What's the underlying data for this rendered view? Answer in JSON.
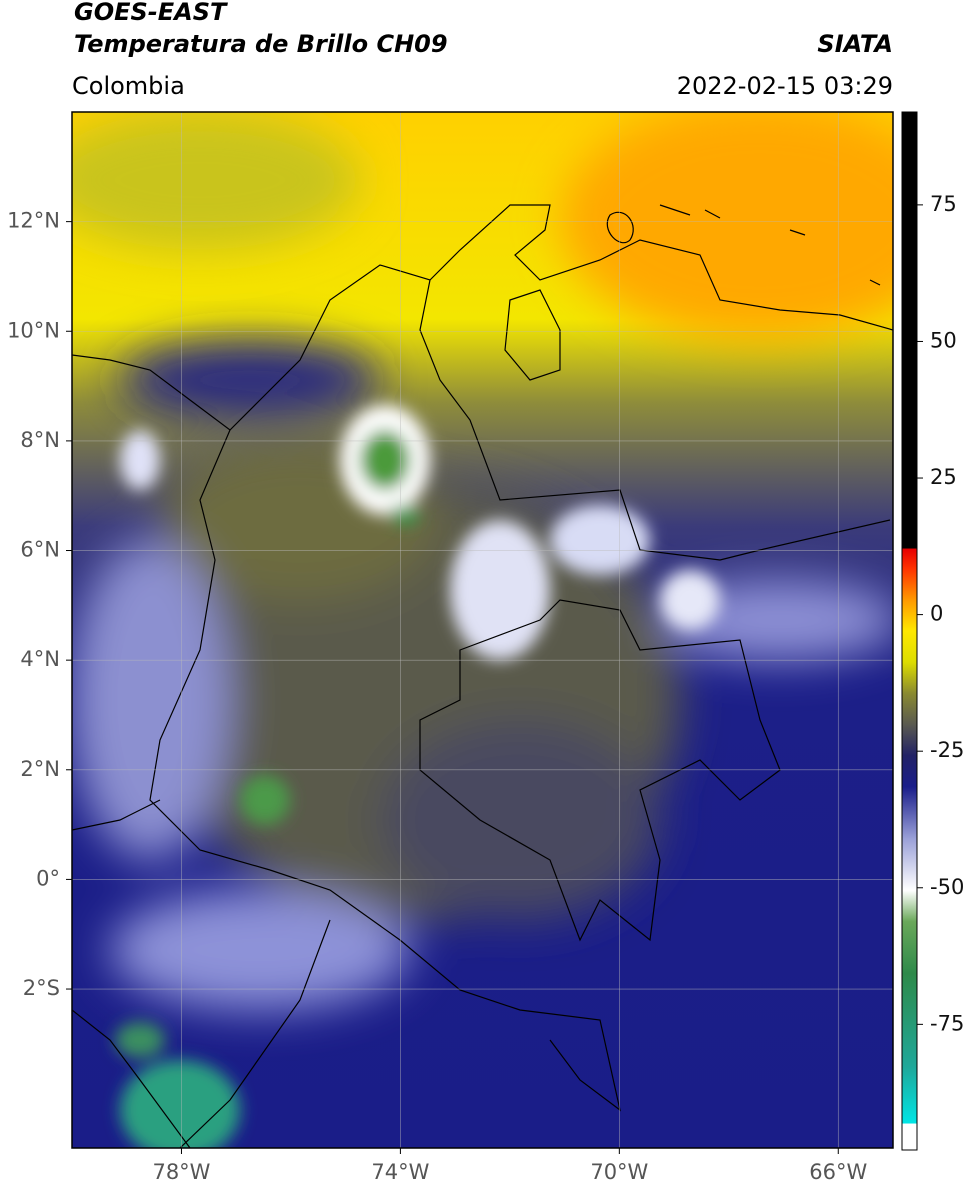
{
  "header": {
    "title": "GOES-EAST",
    "subtitle": "Temperatura de Brillo CH09",
    "region": "Colombia",
    "source": "SIATA",
    "datetime": "2022-02-15 03:29"
  },
  "map": {
    "xlim": [
      -80,
      -65
    ],
    "ylim": [
      -4.9,
      14
    ],
    "xticks": [
      {
        "value": -78,
        "label": "78°W"
      },
      {
        "value": -74,
        "label": "74°W"
      },
      {
        "value": -70,
        "label": "70°W"
      },
      {
        "value": -66,
        "label": "66°W"
      }
    ],
    "yticks": [
      {
        "value": 12,
        "label": "12°N"
      },
      {
        "value": 10,
        "label": "10°N"
      },
      {
        "value": 8,
        "label": "8°N"
      },
      {
        "value": 6,
        "label": "6°N"
      },
      {
        "value": 4,
        "label": "4°N"
      },
      {
        "value": 2,
        "label": "2°N"
      },
      {
        "value": 0,
        "label": "0°"
      },
      {
        "value": -2,
        "label": "2°S"
      }
    ],
    "grid": true
  },
  "colorbar": {
    "lim": [
      -98,
      92
    ],
    "ticks": [
      75,
      50,
      25,
      0,
      -25,
      -50,
      -75
    ]
  }
}
